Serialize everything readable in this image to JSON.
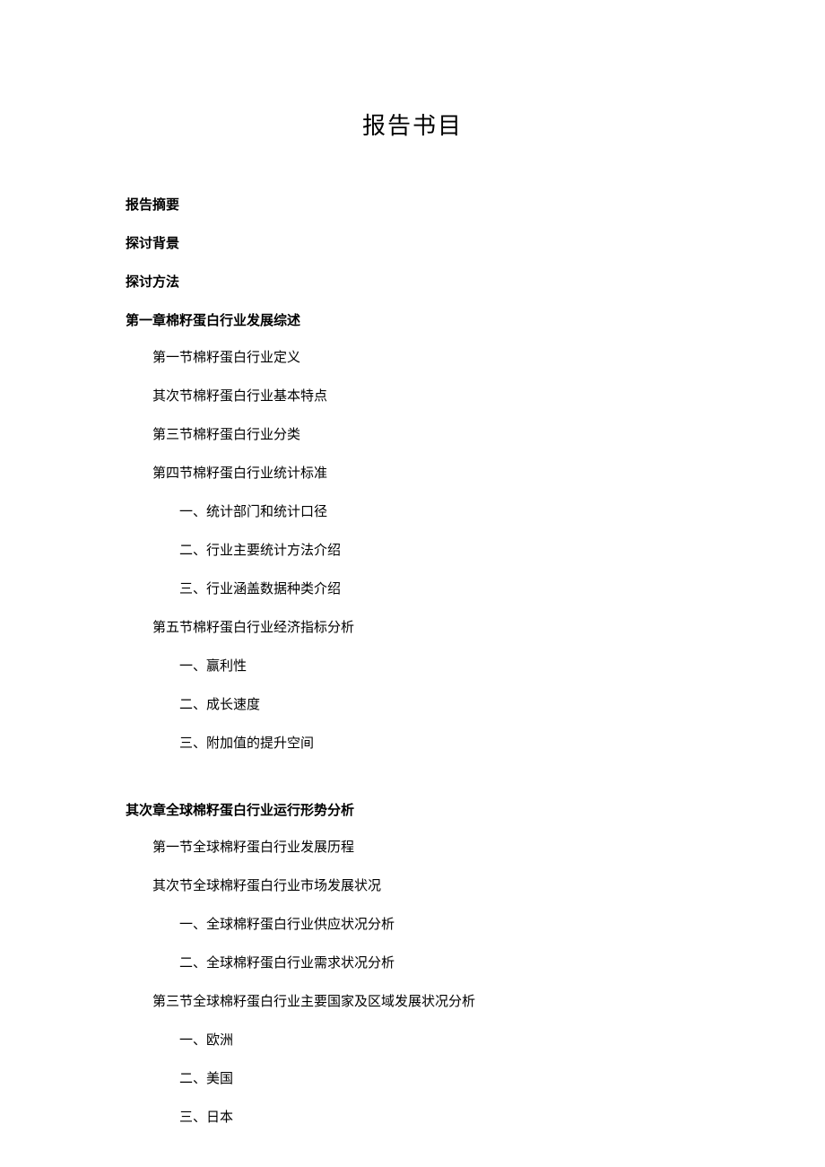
{
  "title": "报告书目",
  "sections": [
    {
      "type": "header",
      "text": "报告摘要"
    },
    {
      "type": "header",
      "text": "探讨背景"
    },
    {
      "type": "header",
      "text": "探讨方法"
    },
    {
      "type": "header",
      "text": "第一章棉籽蛋白行业发展综述"
    },
    {
      "type": "level1",
      "text": "第一节棉籽蛋白行业定义"
    },
    {
      "type": "level1",
      "text": "其次节棉籽蛋白行业基本特点"
    },
    {
      "type": "level1",
      "text": "第三节棉籽蛋白行业分类"
    },
    {
      "type": "level1",
      "text": "第四节棉籽蛋白行业统计标准"
    },
    {
      "type": "level2",
      "text": "一、统计部门和统计口径"
    },
    {
      "type": "level2",
      "text": "二、行业主要统计方法介绍"
    },
    {
      "type": "level2",
      "text": "三、行业涵盖数据种类介绍"
    },
    {
      "type": "level1",
      "text": "第五节棉籽蛋白行业经济指标分析"
    },
    {
      "type": "level2",
      "text": "一、赢利性"
    },
    {
      "type": "level2",
      "text": "二、成长速度"
    },
    {
      "type": "level2",
      "text": "三、附加值的提升空间"
    },
    {
      "type": "gap"
    },
    {
      "type": "header",
      "text": "其次章全球棉籽蛋白行业运行形势分析"
    },
    {
      "type": "level1",
      "text": "第一节全球棉籽蛋白行业发展历程"
    },
    {
      "type": "level1",
      "text": "其次节全球棉籽蛋白行业市场发展状况"
    },
    {
      "type": "level2",
      "text": "一、全球棉籽蛋白行业供应状况分析"
    },
    {
      "type": "level2",
      "text": "二、全球棉籽蛋白行业需求状况分析"
    },
    {
      "type": "level1",
      "text": "第三节全球棉籽蛋白行业主要国家及区域发展状况分析"
    },
    {
      "type": "level2",
      "text": "一、欧洲"
    },
    {
      "type": "level2",
      "text": "二、美国"
    },
    {
      "type": "level2",
      "text": "三、日本"
    }
  ]
}
